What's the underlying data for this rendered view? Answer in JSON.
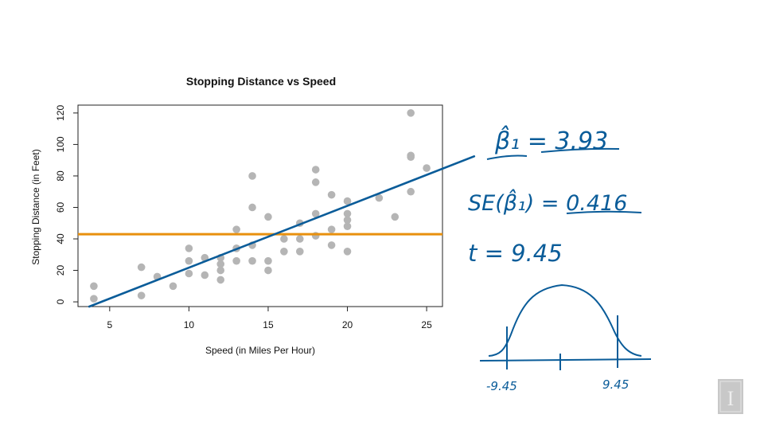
{
  "chart_data": {
    "type": "scatter",
    "title": "Stopping Distance vs Speed",
    "xlabel": "Speed (in Miles Per Hour)",
    "ylabel": "Stopping Distance (in Feet)",
    "xlim": [
      3,
      26
    ],
    "ylim": [
      -3,
      125
    ],
    "xticks": [
      5,
      10,
      15,
      20,
      25
    ],
    "yticks": [
      0,
      20,
      40,
      60,
      80,
      100,
      120
    ],
    "points": [
      [
        4,
        2
      ],
      [
        4,
        10
      ],
      [
        7,
        4
      ],
      [
        7,
        22
      ],
      [
        8,
        16
      ],
      [
        9,
        10
      ],
      [
        10,
        18
      ],
      [
        10,
        26
      ],
      [
        10,
        34
      ],
      [
        11,
        17
      ],
      [
        11,
        28
      ],
      [
        12,
        14
      ],
      [
        12,
        20
      ],
      [
        12,
        24
      ],
      [
        12,
        28
      ],
      [
        13,
        26
      ],
      [
        13,
        34
      ],
      [
        13,
        34
      ],
      [
        13,
        46
      ],
      [
        14,
        26
      ],
      [
        14,
        36
      ],
      [
        14,
        60
      ],
      [
        14,
        80
      ],
      [
        15,
        20
      ],
      [
        15,
        26
      ],
      [
        15,
        54
      ],
      [
        16,
        32
      ],
      [
        16,
        40
      ],
      [
        17,
        32
      ],
      [
        17,
        40
      ],
      [
        17,
        50
      ],
      [
        18,
        42
      ],
      [
        18,
        56
      ],
      [
        18,
        76
      ],
      [
        18,
        84
      ],
      [
        19,
        36
      ],
      [
        19,
        46
      ],
      [
        19,
        68
      ],
      [
        20,
        32
      ],
      [
        20,
        48
      ],
      [
        20,
        52
      ],
      [
        20,
        56
      ],
      [
        20,
        64
      ],
      [
        22,
        66
      ],
      [
        23,
        54
      ],
      [
        24,
        70
      ],
      [
        24,
        92
      ],
      [
        24,
        93
      ],
      [
        24,
        120
      ],
      [
        25,
        85
      ]
    ],
    "mean_line_y": 43,
    "regression_line": {
      "intercept": -17.58,
      "slope": 3.93,
      "x_end": 28
    },
    "colors": {
      "points": "#b5b5b5",
      "regression": "#0a5c99",
      "mean_line": "#e8900e"
    }
  },
  "annotations": {
    "beta_label": "β̂₁ = 3.93",
    "se_label": "SE(β̂₁) = 0.416",
    "t_label": "t = 9.45",
    "neg_crit": "-9.45",
    "pos_crit": "9.45"
  },
  "logo": {
    "glyph": "I"
  }
}
